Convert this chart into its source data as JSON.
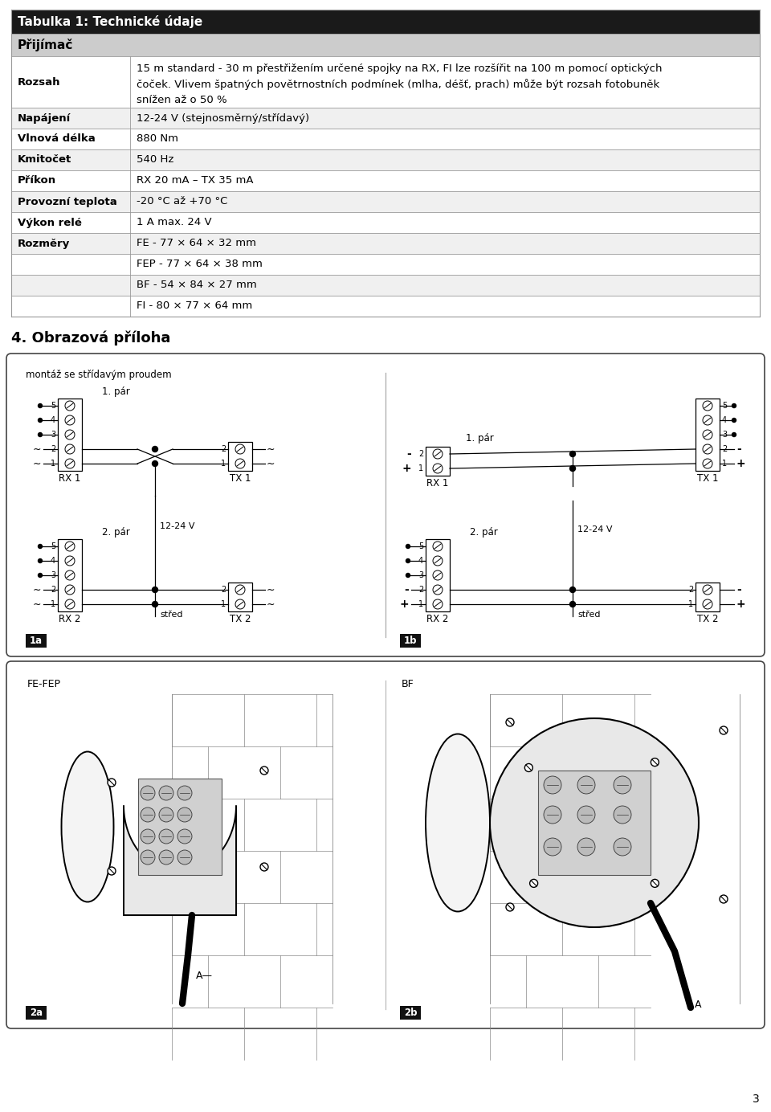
{
  "page_bg": "#ffffff",
  "table_header_bg": "#1a1a1a",
  "table_header_fg": "#ffffff",
  "table_subheader_bg": "#cccccc",
  "table_row_odd_bg": "#f0f0f0",
  "table_row_even_bg": "#ffffff",
  "table_border": "#999999",
  "table_title": "Tabulka 1: Technické údaje",
  "section_header": "Přijímač",
  "page_number": "3",
  "section4_title": "4. Obrazová příloha"
}
